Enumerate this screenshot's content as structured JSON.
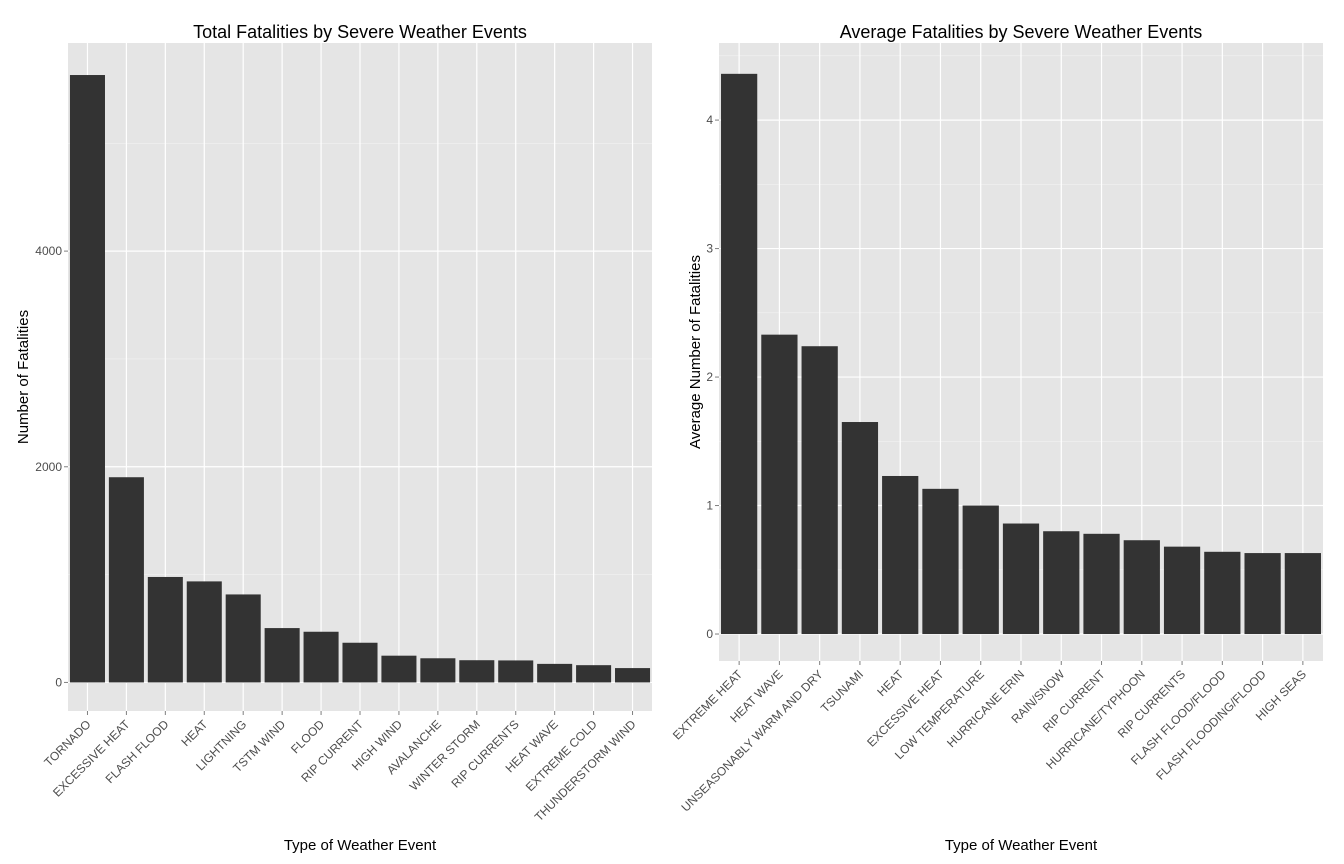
{
  "chart_data": [
    {
      "type": "bar",
      "title": "Total Fatalities by Severe Weather Events",
      "xlabel": "Type of Weather Event",
      "ylabel": "Number of Fatalities",
      "categories": [
        "TORNADO",
        "EXCESSIVE HEAT",
        "FLASH FLOOD",
        "HEAT",
        "LIGHTNING",
        "TSTM WIND",
        "FLOOD",
        "RIP CURRENT",
        "HIGH WIND",
        "AVALANCHE",
        "WINTER STORM",
        "RIP CURRENTS",
        "HEAT WAVE",
        "EXTREME COLD",
        "THUNDERSTORM WIND"
      ],
      "values": [
        5633,
        1903,
        978,
        937,
        816,
        504,
        470,
        368,
        248,
        224,
        206,
        204,
        172,
        160,
        133
      ],
      "yticks": [
        0,
        2000,
        4000
      ],
      "ytick_labels": [
        "0",
        "2000",
        "4000"
      ],
      "ylim": [
        -265,
        5930
      ],
      "grid": true,
      "bar_color": "#333333",
      "panel_color": "#e5e5e5"
    },
    {
      "type": "bar",
      "title": "Average Fatalities by Severe Weather Events",
      "xlabel": "Type of Weather Event",
      "ylabel": "Average Number of Fatalities",
      "categories": [
        "EXTREME HEAT",
        "HEAT WAVE",
        "UNSEASONABLY WARM AND DRY",
        "TSUNAMI",
        "HEAT",
        "EXCESSIVE HEAT",
        "LOW TEMPERATURE",
        "HURRICANE ERIN",
        "RAIN/SNOW",
        "RIP CURRENT",
        "HURRICANE/TYPHOON",
        "RIP CURRENTS",
        "FLASH FLOOD/FLOOD",
        "FLASH FLOODING/FLOOD",
        "HIGH SEAS"
      ],
      "values": [
        4.36,
        2.33,
        2.24,
        1.65,
        1.23,
        1.13,
        1.0,
        0.86,
        0.8,
        0.78,
        0.73,
        0.68,
        0.64,
        0.63,
        0.63
      ],
      "yticks": [
        0,
        1,
        2,
        3,
        4
      ],
      "ytick_labels": [
        "0",
        "1",
        "2",
        "3",
        "4"
      ],
      "ylim": [
        -0.21,
        4.6
      ],
      "grid": true,
      "bar_color": "#333333",
      "panel_color": "#e5e5e5"
    }
  ]
}
